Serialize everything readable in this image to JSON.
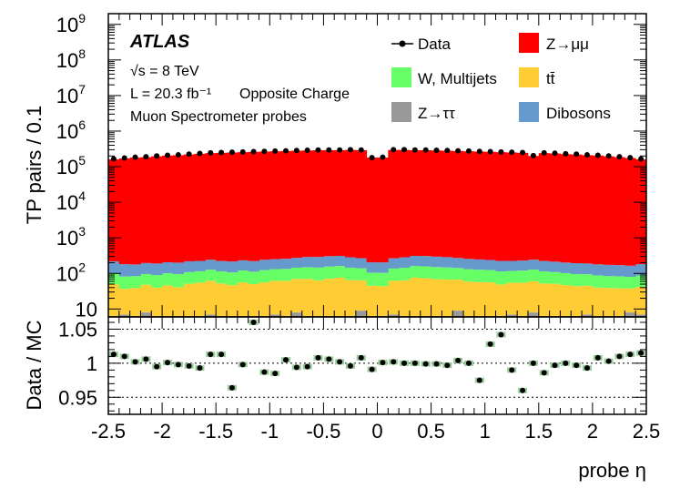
{
  "chart_data": [
    {
      "panel": "main",
      "type": "bar",
      "stacked": true,
      "yscale": "log",
      "ylim": [
        6,
        2000000000
      ],
      "xlim": [
        -2.5,
        2.5
      ],
      "bin_width": 0.1,
      "ylabel": "TP pairs / 0.1",
      "y_tick_labels": [
        "10",
        "10^2",
        "10^3",
        "10^4",
        "10^5",
        "10^6",
        "10^7",
        "10^8",
        "10^9"
      ],
      "annotations": {
        "experiment": "ATLAS",
        "energy": "√s = 8 TeV",
        "luminosity": "L = 20.3 fb⁻¹",
        "selection": "Opposite Charge",
        "probe_type": "Muon Spectrometer probes"
      },
      "legend": {
        "placement": "top-right",
        "entries": [
          {
            "label": "Data",
            "marker": "point",
            "color": "#000000"
          },
          {
            "label": "Z→μμ",
            "marker": "box",
            "color": "#ff0000"
          },
          {
            "label": "W, Multijets",
            "marker": "box",
            "color": "#66ff66"
          },
          {
            "label": "tt̄",
            "marker": "box",
            "color": "#ffcc33"
          },
          {
            "label": "Z→ττ",
            "marker": "box",
            "color": "#999999"
          },
          {
            "label": "Dibosons",
            "marker": "box",
            "color": "#6699cc"
          }
        ]
      },
      "series": [
        {
          "name": "Z→ττ",
          "color": "#999999",
          "values": [
            4,
            7,
            4,
            8,
            5,
            4,
            3,
            6,
            5,
            7,
            4,
            5,
            6,
            5,
            4,
            7,
            4,
            8,
            5,
            4,
            3,
            6,
            5,
            9,
            5,
            4,
            7,
            4,
            6,
            5,
            4,
            5,
            9,
            4,
            5,
            6,
            4,
            7,
            5,
            8,
            4,
            6,
            5,
            4,
            7,
            5,
            4,
            6,
            8,
            7
          ]
        },
        {
          "name": "tt̄",
          "color": "#ffcc33",
          "values": [
            45,
            30,
            35,
            40,
            35,
            42,
            38,
            45,
            50,
            55,
            48,
            42,
            50,
            45,
            52,
            55,
            58,
            62,
            65,
            60,
            68,
            70,
            60,
            55,
            40,
            40,
            55,
            60,
            70,
            68,
            65,
            62,
            58,
            55,
            52,
            50,
            45,
            48,
            50,
            52,
            48,
            45,
            42,
            40,
            38,
            35,
            35,
            32,
            30,
            35
          ]
        },
        {
          "name": "W, Multijets",
          "color": "#66ff66",
          "values": [
            50,
            45,
            45,
            48,
            50,
            55,
            55,
            58,
            60,
            65,
            62,
            60,
            65,
            62,
            68,
            70,
            72,
            75,
            80,
            82,
            85,
            85,
            80,
            75,
            60,
            60,
            75,
            80,
            85,
            85,
            82,
            80,
            75,
            72,
            70,
            68,
            65,
            62,
            65,
            68,
            62,
            58,
            55,
            52,
            50,
            48,
            45,
            45,
            42,
            45
          ]
        },
        {
          "name": "Dibosons",
          "color": "#6699cc",
          "values": [
            120,
            100,
            95,
            100,
            100,
            105,
            105,
            110,
            110,
            115,
            110,
            110,
            112,
            110,
            118,
            120,
            125,
            130,
            140,
            145,
            150,
            150,
            140,
            130,
            100,
            100,
            130,
            140,
            150,
            150,
            145,
            140,
            130,
            125,
            120,
            115,
            110,
            108,
            110,
            115,
            110,
            105,
            100,
            98,
            95,
            92,
            90,
            88,
            85,
            95
          ]
        },
        {
          "name": "Z→μμ",
          "color": "#ff0000",
          "values": [
            160000,
            170000,
            180000,
            185000,
            195000,
            205000,
            210000,
            220000,
            230000,
            240000,
            245000,
            250000,
            255000,
            260000,
            265000,
            270000,
            275000,
            280000,
            285000,
            290000,
            290000,
            290000,
            295000,
            290000,
            180000,
            180000,
            295000,
            295000,
            290000,
            290000,
            285000,
            280000,
            275000,
            270000,
            265000,
            260000,
            255000,
            250000,
            245000,
            200000,
            240000,
            235000,
            225000,
            220000,
            210000,
            205000,
            195000,
            185000,
            175000,
            160000
          ]
        }
      ],
      "data_points": {
        "name": "Data",
        "values": [
          165000,
          175000,
          185000,
          190000,
          200000,
          210000,
          215000,
          225000,
          235000,
          245000,
          250000,
          255000,
          260000,
          265000,
          270000,
          275000,
          280000,
          285000,
          290000,
          295000,
          295000,
          295000,
          300000,
          295000,
          180000,
          185000,
          300000,
          300000,
          295000,
          295000,
          290000,
          285000,
          280000,
          275000,
          270000,
          265000,
          260000,
          255000,
          250000,
          205000,
          245000,
          240000,
          230000,
          225000,
          215000,
          210000,
          200000,
          190000,
          180000,
          165000
        ]
      }
    },
    {
      "panel": "ratio",
      "type": "scatter",
      "ylabel": "Data / MC",
      "xlabel": "probe η",
      "xlim": [
        -2.5,
        2.5
      ],
      "ylim": [
        0.925,
        1.068
      ],
      "y_tick_labels": [
        "0.95",
        "1",
        "1.05"
      ],
      "reference_lines": [
        0.95,
        1.0,
        1.05
      ],
      "x_tick_labels": [
        "-2.5",
        "-2",
        "-1.5",
        "-1",
        "-0.5",
        "0",
        "0.5",
        "1",
        "1.5",
        "2",
        "2.5"
      ],
      "x": [
        -2.45,
        -2.35,
        -2.25,
        -2.15,
        -2.05,
        -1.95,
        -1.85,
        -1.75,
        -1.65,
        -1.55,
        -1.45,
        -1.35,
        -1.25,
        -1.15,
        -1.05,
        -0.95,
        -0.85,
        -0.75,
        -0.65,
        -0.55,
        -0.45,
        -0.35,
        -0.25,
        -0.15,
        -0.05,
        0.05,
        0.15,
        0.25,
        0.35,
        0.45,
        0.55,
        0.65,
        0.75,
        0.85,
        0.95,
        1.05,
        1.15,
        1.25,
        1.35,
        1.45,
        1.55,
        1.65,
        1.75,
        1.85,
        1.95,
        2.05,
        2.15,
        2.25,
        2.35,
        2.45
      ],
      "values": [
        1.013,
        1.01,
        1.002,
        1.006,
        0.995,
        1.001,
        0.998,
        0.996,
        0.993,
        1.013,
        1.013,
        0.964,
        0.998,
        1.06,
        0.987,
        0.985,
        1.005,
        0.994,
        0.995,
        1.008,
        1.006,
        1.002,
        0.996,
        1.008,
        0.991,
        1.001,
        1.002,
        1.0,
        1.0,
        0.999,
        0.999,
        0.997,
        1.004,
        1.0,
        0.975,
        1.028,
        1.042,
        0.99,
        0.96,
        1.0,
        0.986,
        0.997,
        1.0,
        0.997,
        0.993,
        1.008,
        1.003,
        1.01,
        1.013,
        1.015
      ]
    }
  ]
}
